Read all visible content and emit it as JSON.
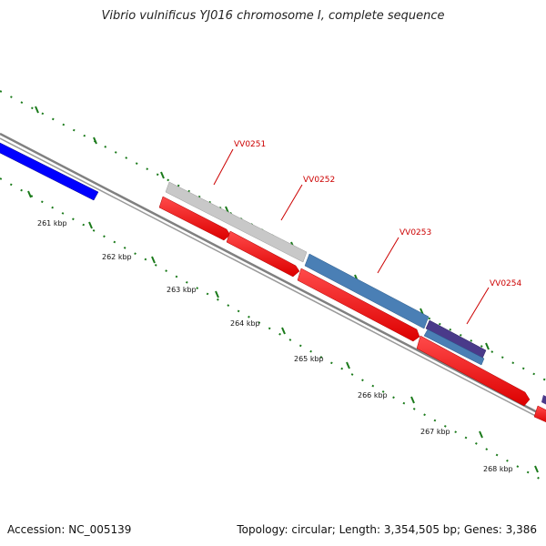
{
  "title": "Vibrio vulnificus YJ016 chromosome I, complete sequence",
  "footer": {
    "accession": "Accession: NC_005139",
    "info": "Topology: circular; Length: 3,354,505 bp; Genes: 3,386"
  },
  "ticks": [
    {
      "label": "261 kbp"
    },
    {
      "label": "262 kbp"
    },
    {
      "label": "263 kbp"
    },
    {
      "label": "264 kbp"
    },
    {
      "label": "265 kbp"
    },
    {
      "label": "266 kbp"
    },
    {
      "label": "267 kbp"
    },
    {
      "label": "268 kbp"
    }
  ],
  "gene_labels": [
    {
      "name": "VV0251"
    },
    {
      "name": "VV0252"
    },
    {
      "name": "VV0253"
    },
    {
      "name": "VV0254"
    }
  ],
  "colors": {
    "cds_red": "#ff0000",
    "gene_blue": "#0000ff",
    "gene_gray": "#c0c0c0",
    "gene_steel": "#4a7fb5",
    "gene_purple": "#4a3a8a",
    "tick_green": "#1a7a1a",
    "backbone": "#808080",
    "label_red": "#cc0000"
  }
}
